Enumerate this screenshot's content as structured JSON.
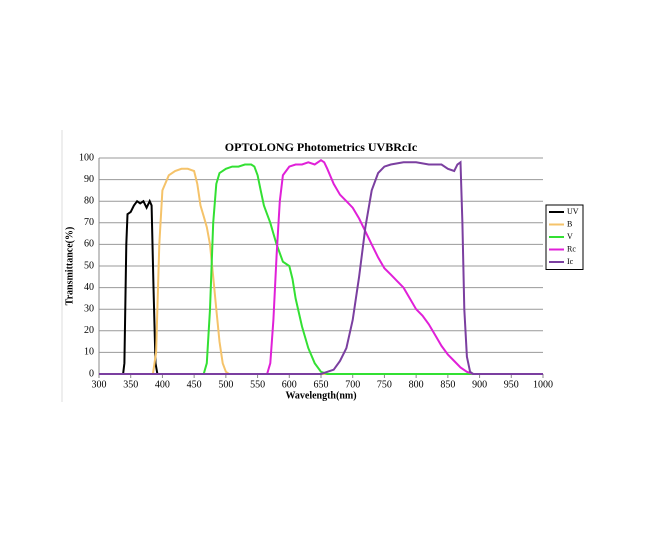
{
  "chart_data": {
    "type": "line",
    "title": "OPTOLONG Photometrics UVBRcIc",
    "x_label": "Wavelength(nm)",
    "y_label": "Transmittance(%)",
    "xlim": [
      300,
      1000
    ],
    "ylim": [
      0,
      100
    ],
    "xticks": [
      300,
      350,
      400,
      450,
      500,
      550,
      600,
      650,
      700,
      750,
      800,
      850,
      900,
      950,
      1000
    ],
    "yticks": [
      0,
      10,
      20,
      30,
      40,
      50,
      60,
      70,
      80,
      90,
      100
    ],
    "grid": true,
    "legend": "right",
    "series": [
      {
        "name": "UV",
        "color": "#000000",
        "x": [
          300,
          338,
          340,
          343,
          345,
          350,
          355,
          360,
          365,
          370,
          375,
          380,
          383,
          386,
          389,
          392,
          1000
        ],
        "values": [
          0,
          0,
          5,
          60,
          74,
          75,
          78,
          80,
          79,
          80,
          77,
          80,
          78,
          40,
          5,
          0,
          0
        ]
      },
      {
        "name": "B",
        "color": "#f5c36a",
        "x": [
          300,
          385,
          390,
          395,
          400,
          410,
          420,
          430,
          440,
          450,
          455,
          460,
          465,
          470,
          475,
          480,
          485,
          490,
          495,
          500,
          505,
          1000
        ],
        "values": [
          0,
          0,
          10,
          60,
          85,
          92,
          94,
          95,
          95,
          94,
          88,
          78,
          73,
          68,
          60,
          45,
          30,
          15,
          5,
          1,
          0,
          0
        ]
      },
      {
        "name": "V",
        "color": "#33e033",
        "x": [
          300,
          465,
          470,
          475,
          480,
          485,
          490,
          500,
          510,
          520,
          530,
          540,
          545,
          550,
          555,
          560,
          565,
          570,
          575,
          580,
          590,
          600,
          605,
          610,
          620,
          630,
          640,
          650,
          660,
          1000
        ],
        "values": [
          0,
          0,
          5,
          30,
          70,
          88,
          93,
          95,
          96,
          96,
          97,
          97,
          96,
          92,
          85,
          78,
          74,
          70,
          65,
          60,
          52,
          50,
          44,
          35,
          22,
          12,
          5,
          1,
          0,
          0
        ]
      },
      {
        "name": "Rc",
        "color": "#e020d8",
        "x": [
          300,
          565,
          570,
          575,
          580,
          585,
          590,
          600,
          610,
          620,
          630,
          640,
          650,
          655,
          660,
          670,
          680,
          690,
          700,
          710,
          720,
          730,
          740,
          750,
          760,
          770,
          780,
          790,
          800,
          810,
          820,
          830,
          840,
          850,
          860,
          870,
          880,
          890,
          1000
        ],
        "values": [
          0,
          0,
          5,
          25,
          55,
          80,
          92,
          96,
          97,
          97,
          98,
          97,
          99,
          98,
          95,
          88,
          83,
          80,
          77,
          72,
          66,
          60,
          54,
          49,
          46,
          43,
          40,
          35,
          30,
          27,
          23,
          18,
          13,
          9,
          6,
          3,
          1,
          0,
          0
        ]
      },
      {
        "name": "Ic",
        "color": "#7b3fa0",
        "x": [
          300,
          650,
          670,
          680,
          690,
          700,
          710,
          720,
          730,
          740,
          750,
          760,
          780,
          800,
          820,
          840,
          850,
          860,
          865,
          870,
          873,
          876,
          880,
          885,
          890,
          1000
        ],
        "values": [
          0,
          0,
          2,
          6,
          12,
          25,
          45,
          68,
          85,
          93,
          96,
          97,
          98,
          98,
          97,
          97,
          95,
          94,
          97,
          98,
          70,
          30,
          8,
          1,
          0,
          0
        ]
      }
    ]
  }
}
